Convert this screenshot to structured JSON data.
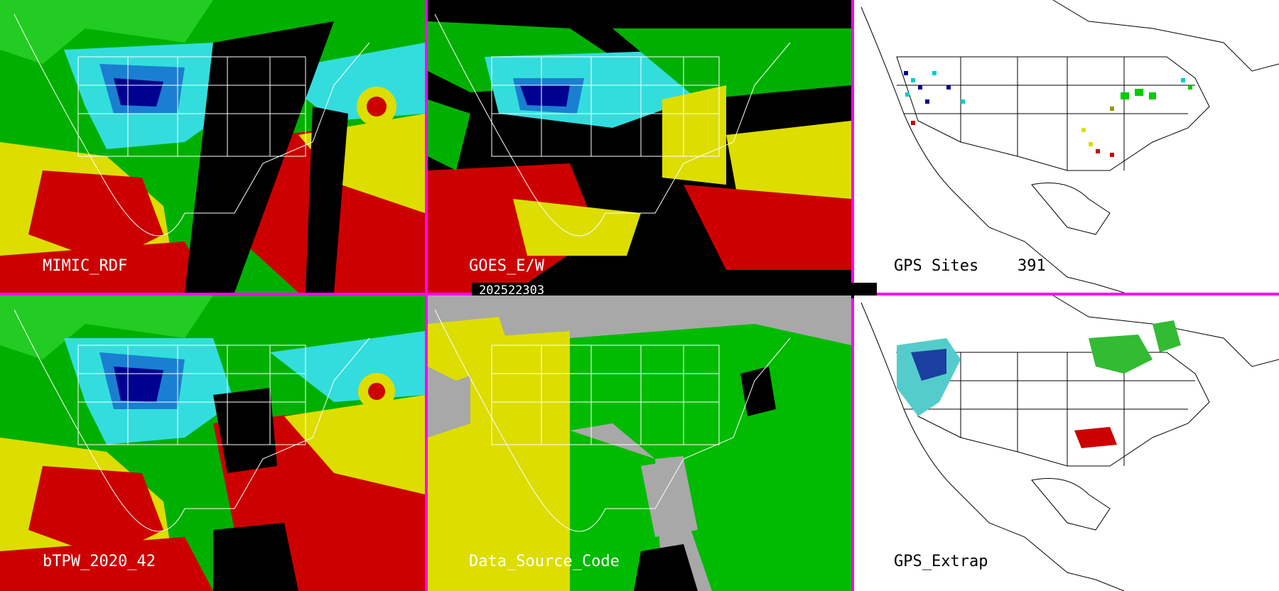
{
  "panels": {
    "top_left": {
      "label": "MIMIC_RDF"
    },
    "top_middle": {
      "label": "GOES_E/W"
    },
    "top_right": {
      "label": "GPS Sites",
      "count": "391"
    },
    "bottom_left": {
      "label": "bTPW_2020_42"
    },
    "bottom_middle": {
      "label": "Data_Source_Code"
    },
    "bottom_right": {
      "label": "GPS_Extrap"
    }
  },
  "timestamp": "202522303",
  "colors": {
    "separator": "#ff00ff",
    "land_outline": "#ffffff",
    "dry": "#00ffff",
    "very_dry": "#000080",
    "moist": "#00cc00",
    "wet": "#dddd00",
    "very_wet": "#cc0000",
    "no_data": "#000000",
    "source_gray": "#a8a8a8",
    "source_yellow": "#dddd00",
    "source_green": "#00bb00"
  }
}
